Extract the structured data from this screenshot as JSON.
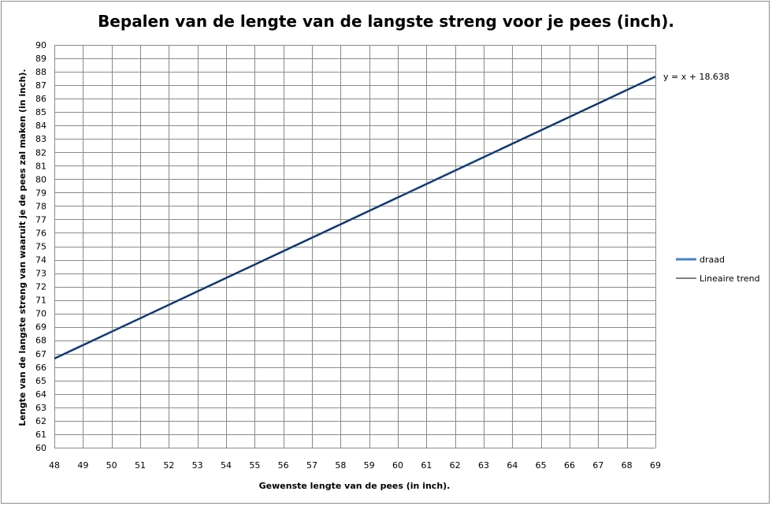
{
  "chart_data": {
    "type": "line",
    "title": "Bepalen van de lengte van de langste streng voor je pees (inch).",
    "xlabel": "Gewenste lengte van  de pees (in inch).",
    "ylabel": "Lengte van de langste streng van waaruit je de pees zal maken  (in inch).",
    "xlim": [
      48,
      69
    ],
    "ylim": [
      60,
      90
    ],
    "x_ticks": [
      48,
      49,
      50,
      51,
      52,
      53,
      54,
      55,
      56,
      57,
      58,
      59,
      60,
      61,
      62,
      63,
      64,
      65,
      66,
      67,
      68,
      69
    ],
    "y_ticks": [
      60,
      61,
      62,
      63,
      64,
      65,
      66,
      67,
      68,
      69,
      70,
      71,
      72,
      73,
      74,
      75,
      76,
      77,
      78,
      79,
      80,
      81,
      82,
      83,
      84,
      85,
      86,
      87,
      88,
      89,
      90
    ],
    "grid": true,
    "legend_position": "right",
    "series": [
      {
        "name": "draad",
        "color": "#4f81bd",
        "x": [
          48,
          49,
          50,
          51,
          52,
          53,
          54,
          55,
          56,
          57,
          58,
          59,
          60,
          61,
          62,
          63,
          64,
          65,
          66,
          67,
          68,
          69
        ],
        "y": [
          66.64,
          67.64,
          68.64,
          69.64,
          70.64,
          71.64,
          72.64,
          73.64,
          74.64,
          75.64,
          76.64,
          77.64,
          78.64,
          79.64,
          80.64,
          81.64,
          82.64,
          83.64,
          84.64,
          85.64,
          86.64,
          87.64
        ]
      }
    ],
    "trendline": {
      "name": "Lineaire trend",
      "color": "#000000",
      "slope": 1,
      "intercept": 18.638,
      "equation": "y = x + 18.638"
    }
  }
}
